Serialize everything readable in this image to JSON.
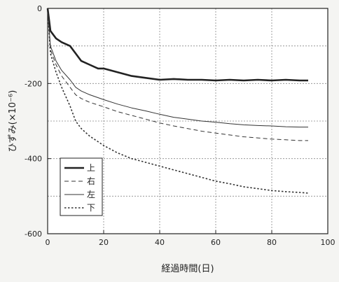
{
  "chart_data": {
    "type": "line",
    "title": "",
    "xlabel": "経過時間(日)",
    "ylabel": "ひずみ(×10⁻⁶)",
    "xlim": [
      0,
      100
    ],
    "ylim": [
      -600,
      0
    ],
    "xticks": [
      0,
      20,
      40,
      60,
      80,
      100
    ],
    "yticks": [
      0,
      -200,
      -400,
      -600
    ],
    "x_tick_labels": [
      "0",
      "20",
      "40",
      "60",
      "80",
      "100"
    ],
    "y_tick_labels": [
      "0",
      "-200",
      "-400",
      "-600"
    ],
    "grid": true,
    "legend_position": "bottom-left",
    "series": [
      {
        "name": "上",
        "style": "solid-thick",
        "color": "#222222",
        "x": [
          0,
          1,
          3,
          5,
          8,
          10,
          12,
          15,
          18,
          20,
          25,
          30,
          35,
          40,
          45,
          50,
          55,
          60,
          65,
          70,
          75,
          80,
          85,
          90,
          93
        ],
        "y": [
          0,
          -60,
          -80,
          -90,
          -100,
          -120,
          -140,
          -150,
          -160,
          -160,
          -170,
          -180,
          -185,
          -190,
          -188,
          -190,
          -190,
          -192,
          -190,
          -192,
          -190,
          -192,
          -190,
          -192,
          -192
        ]
      },
      {
        "name": "右",
        "style": "dashed",
        "color": "#333333",
        "x": [
          0,
          1,
          3,
          5,
          8,
          10,
          12,
          15,
          20,
          25,
          30,
          35,
          40,
          45,
          50,
          55,
          60,
          65,
          70,
          75,
          80,
          85,
          90,
          93
        ],
        "y": [
          0,
          -110,
          -150,
          -180,
          -210,
          -230,
          -240,
          -250,
          -262,
          -275,
          -285,
          -295,
          -305,
          -313,
          -320,
          -327,
          -332,
          -337,
          -342,
          -345,
          -348,
          -350,
          -352,
          -352
        ]
      },
      {
        "name": "左",
        "style": "solid-thin",
        "color": "#333333",
        "x": [
          0,
          1,
          3,
          5,
          8,
          10,
          12,
          15,
          20,
          25,
          30,
          35,
          40,
          45,
          50,
          55,
          60,
          65,
          70,
          75,
          80,
          85,
          90,
          93
        ],
        "y": [
          0,
          -100,
          -140,
          -165,
          -190,
          -210,
          -220,
          -230,
          -243,
          -255,
          -265,
          -273,
          -282,
          -290,
          -295,
          -300,
          -303,
          -307,
          -310,
          -312,
          -313,
          -315,
          -316,
          -316
        ]
      },
      {
        "name": "下",
        "style": "dotted",
        "color": "#333333",
        "x": [
          0,
          1,
          3,
          5,
          8,
          10,
          12,
          15,
          18,
          20,
          25,
          30,
          35,
          40,
          45,
          50,
          55,
          60,
          65,
          70,
          75,
          80,
          85,
          90,
          93
        ],
        "y": [
          0,
          -120,
          -170,
          -210,
          -260,
          -300,
          -320,
          -340,
          -355,
          -365,
          -385,
          -400,
          -410,
          -420,
          -430,
          -440,
          -450,
          -460,
          -467,
          -475,
          -480,
          -485,
          -488,
          -490,
          -492
        ]
      }
    ]
  }
}
